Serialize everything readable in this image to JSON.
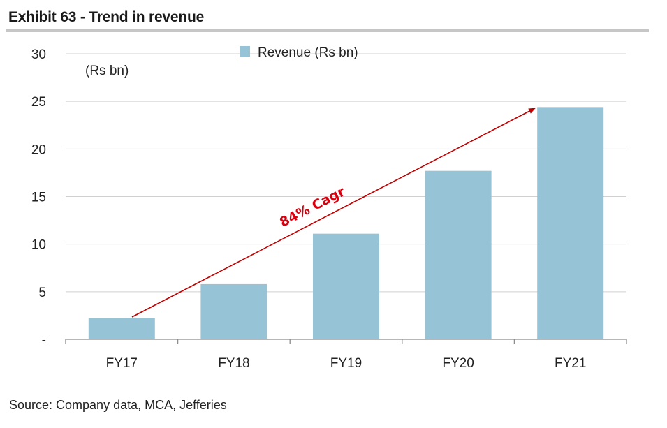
{
  "header": {
    "title": "Exhibit 63 - Trend in revenue"
  },
  "footer": {
    "source": "Source: Company data, MCA, Jefferies"
  },
  "chart_data": {
    "type": "bar",
    "title": "Exhibit 63 - Trend in revenue",
    "ylabel": "(Rs bn)",
    "xlabel": "",
    "categories": [
      "FY17",
      "FY18",
      "FY19",
      "FY20",
      "FY21"
    ],
    "series": [
      {
        "name": "Revenue (Rs bn)",
        "values": [
          2.2,
          5.8,
          11.1,
          17.7,
          24.4
        ],
        "color": "#96c3d5"
      }
    ],
    "ylim": [
      0,
      30
    ],
    "yticks": [
      0,
      5,
      10,
      15,
      20,
      25,
      30
    ],
    "ytick_labels": [
      "-",
      "5",
      "10",
      "15",
      "20",
      "25",
      "30"
    ],
    "grid": true,
    "legend_position": "top-center",
    "annotation": {
      "text": "84% Cagr",
      "from_category": "FY17",
      "to_category": "FY21",
      "color": "#c00000"
    }
  }
}
